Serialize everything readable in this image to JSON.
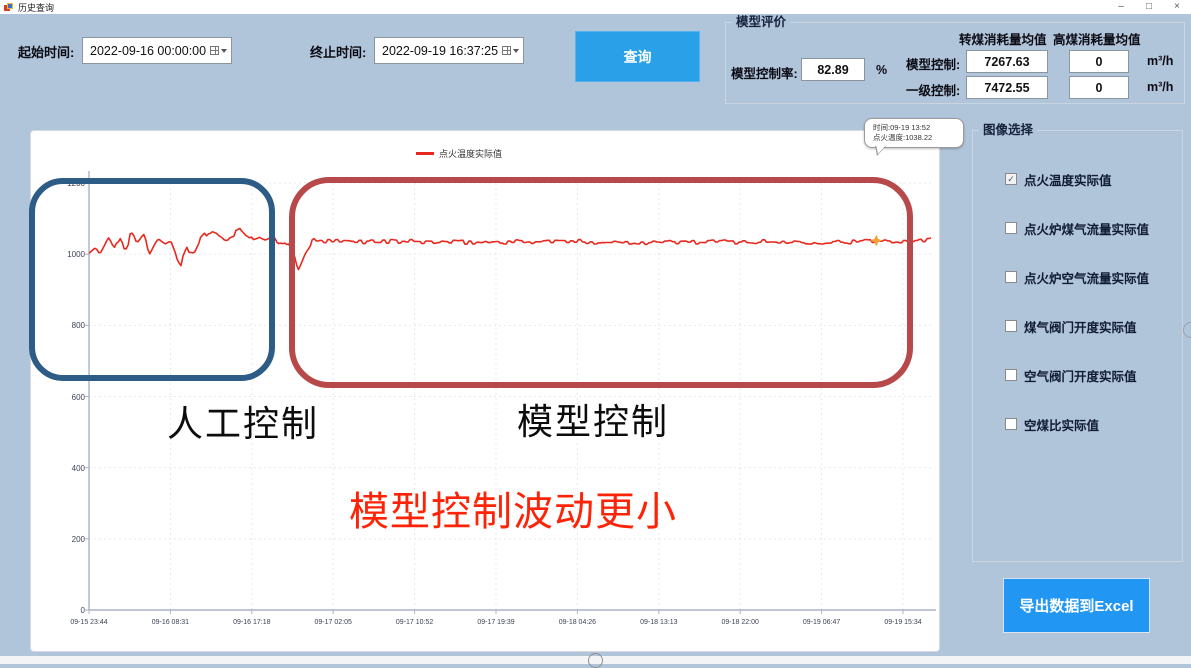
{
  "window": {
    "title": "历史查询",
    "minimize": "–",
    "maximize": "□",
    "close": "×"
  },
  "query_bar": {
    "start_label": "起始时间:",
    "start_value": "2022-09-16 00:00:00",
    "end_label": "终止时间:",
    "end_value": "2022-09-19 16:37:25",
    "query_button": "查询"
  },
  "model_eval": {
    "title": "模型评价",
    "rate_label": "模型控制率:",
    "rate_value": "82.89",
    "rate_unit": "%",
    "col_header_1": "转煤消耗量均值",
    "col_header_2": "高煤消耗量均值",
    "rows": [
      {
        "label": "模型控制:",
        "v1": "7267.63",
        "v2": "0",
        "unit": "m³/h"
      },
      {
        "label": "一级控制:",
        "v1": "7472.55",
        "v2": "0",
        "unit": "m³/h"
      }
    ]
  },
  "tooltip": {
    "line1": "时间:09-19 13:52",
    "line2": "点火温度:1038.22"
  },
  "annotations": {
    "manual_label": "人工控制",
    "model_label": "模型控制",
    "note": "模型控制波动更小",
    "blue_box_color": "#2d5c87",
    "red_box_color": "#b8494b"
  },
  "chart_data": {
    "type": "line",
    "title": "",
    "xlabel": "",
    "ylabel": "",
    "ylim": [
      0,
      1200
    ],
    "grid": true,
    "legend_position": "top-center",
    "legend": [
      {
        "label": "点火温度实际值",
        "color": "#e8281e"
      }
    ],
    "y_ticks": [
      0,
      200,
      400,
      600,
      800,
      1000,
      1200
    ],
    "x_ticks": [
      "09-15 23:44",
      "09-16 08:31",
      "09-16 17:18",
      "09-17 02:05",
      "09-17 10:52",
      "09-17 19:39",
      "09-18 04:26",
      "09-18 13:13",
      "09-18 22:00",
      "09-19 06:47",
      "09-19 15:34"
    ],
    "series": [
      {
        "name": "点火温度实际值",
        "anchors": [
          [
            0,
            1005
          ],
          [
            0.008,
            1022
          ],
          [
            0.014,
            998
          ],
          [
            0.023,
            1040
          ],
          [
            0.03,
            1015
          ],
          [
            0.037,
            1048
          ],
          [
            0.043,
            1018
          ],
          [
            0.05,
            1052
          ],
          [
            0.057,
            1028
          ],
          [
            0.065,
            1050
          ],
          [
            0.072,
            1005
          ],
          [
            0.081,
            1045
          ],
          [
            0.089,
            1030
          ],
          [
            0.097,
            1040
          ],
          [
            0.105,
            990
          ],
          [
            0.109,
            972
          ],
          [
            0.116,
            1012
          ],
          [
            0.125,
            1008
          ],
          [
            0.133,
            1048
          ],
          [
            0.143,
            1070
          ],
          [
            0.152,
            1062
          ],
          [
            0.162,
            1045
          ],
          [
            0.171,
            1052
          ],
          [
            0.181,
            1065
          ],
          [
            0.19,
            1042
          ],
          [
            0.2,
            1050
          ],
          [
            0.208,
            1040
          ],
          [
            0.216,
            1048
          ],
          [
            0.226,
            1035
          ],
          [
            0.234,
            1040
          ],
          [
            0.242,
            1000
          ],
          [
            0.249,
            960
          ],
          [
            0.257,
            1005
          ],
          [
            0.266,
            1038
          ],
          [
            0.287,
            1035
          ],
          [
            0.35,
            1036
          ],
          [
            0.45,
            1033
          ],
          [
            0.55,
            1036
          ],
          [
            0.65,
            1033
          ],
          [
            0.75,
            1035
          ],
          [
            0.85,
            1034
          ],
          [
            0.92,
            1035
          ],
          [
            0.935,
            1038.22
          ],
          [
            0.96,
            1037
          ],
          [
            1,
            1042
          ]
        ],
        "jitter": [
          {
            "until": 0.235,
            "amp": 11,
            "step": 3
          },
          {
            "until": 1.01,
            "amp": 6,
            "step": 2
          }
        ],
        "highlight": {
          "t": 0.935,
          "value": 1038.22,
          "color": "#f0a23a"
        }
      }
    ]
  },
  "image_select": {
    "title": "图像选择",
    "items": [
      {
        "label": "点火温度实际值",
        "checked": true
      },
      {
        "label": "点火炉煤气流量实际值",
        "checked": false
      },
      {
        "label": "点火炉空气流量实际值",
        "checked": false
      },
      {
        "label": "煤气阀门开度实际值",
        "checked": false
      },
      {
        "label": "空气阀门开度实际值",
        "checked": false
      },
      {
        "label": "空煤比实际值",
        "checked": false
      }
    ]
  },
  "export_button": "导出数据到Excel"
}
